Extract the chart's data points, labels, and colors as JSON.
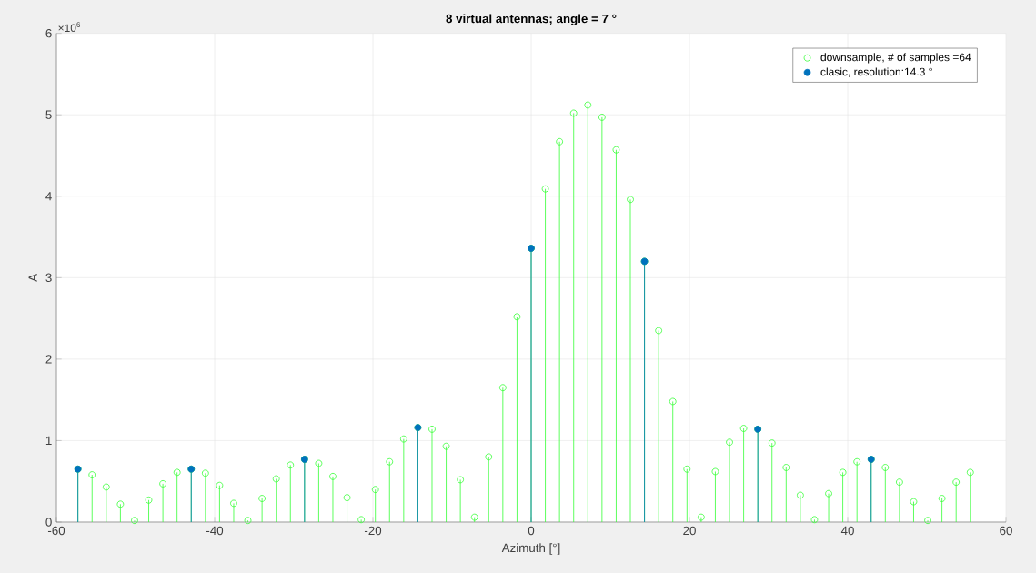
{
  "chart_data": {
    "type": "lollipop",
    "title": "8 virtual antennas; angle = 7 °",
    "xlabel": "Azimuth [°]",
    "ylabel": "A",
    "annotations": [
      "×10$^{6}$"
    ],
    "xlim": [
      -60,
      60
    ],
    "xticks": [
      -60,
      -40,
      -20,
      0,
      20,
      40,
      60
    ],
    "ylim": [
      0,
      6
    ],
    "yticks": [
      0,
      1,
      2,
      3,
      4,
      5,
      6
    ],
    "grid": true,
    "legend": "top right",
    "marker": "circle",
    "series": [
      {
        "name": "downsample, # of samples =64",
        "color": "#33ff33",
        "x": [
          -57.28,
          -55.49,
          -53.7,
          -51.91,
          -50.12,
          -48.33,
          -46.54,
          -44.75,
          -42.96,
          -41.17,
          -39.38,
          -37.59,
          -35.8,
          -34.01,
          -32.22,
          -30.43,
          -28.64,
          -26.85,
          -25.06,
          -23.27,
          -21.48,
          -19.69,
          -17.9,
          -16.11,
          -14.32,
          -12.53,
          -10.74,
          -8.95,
          -7.16,
          -5.37,
          -3.58,
          -1.79,
          0,
          1.79,
          3.58,
          5.37,
          7.16,
          8.95,
          10.74,
          12.53,
          14.32,
          16.11,
          17.9,
          19.69,
          21.48,
          23.27,
          25.06,
          26.85,
          28.64,
          30.43,
          32.22,
          34.01,
          35.8,
          37.59,
          39.38,
          41.17,
          42.96,
          44.75,
          46.54,
          48.33,
          50.12,
          51.91,
          53.7,
          55.49
        ],
        "values": [
          0.65,
          0.58,
          0.43,
          0.22,
          0.02,
          0.27,
          0.47,
          0.61,
          0.65,
          0.6,
          0.45,
          0.23,
          0.02,
          0.29,
          0.53,
          0.7,
          0.77,
          0.72,
          0.56,
          0.3,
          0.03,
          0.4,
          0.74,
          1.02,
          1.16,
          1.14,
          0.93,
          0.52,
          0.06,
          0.8,
          1.65,
          2.52,
          3.36,
          4.09,
          4.67,
          5.02,
          5.12,
          4.97,
          4.57,
          3.96,
          3.2,
          2.35,
          1.48,
          0.65,
          0.06,
          0.62,
          0.98,
          1.15,
          1.14,
          0.97,
          0.67,
          0.33,
          0.03,
          0.35,
          0.61,
          0.74,
          0.77,
          0.67,
          0.49,
          0.25,
          0.02,
          0.29,
          0.49,
          0.61
        ]
      },
      {
        "name": "clasic, resolution:14.3 °",
        "color": "#0072bd",
        "x": [
          -57.28,
          -42.96,
          -28.64,
          -14.32,
          0,
          14.32,
          28.64,
          42.96
        ],
        "values": [
          0.65,
          0.65,
          0.77,
          1.16,
          3.36,
          3.2,
          1.14,
          0.77
        ]
      }
    ]
  }
}
